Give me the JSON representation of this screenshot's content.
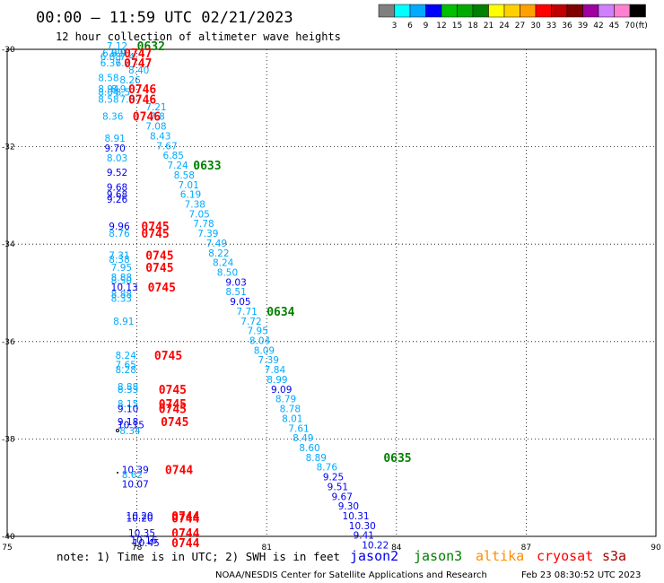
{
  "title": "00:00 – 11:59 UTC 02/21/2023",
  "subtitle": "12 hour collection of altimeter wave heights",
  "colorbar": {
    "labels": [
      "3",
      "6",
      "9",
      "12",
      "15",
      "18",
      "21",
      "24",
      "27",
      "30",
      "33",
      "36",
      "39",
      "42",
      "45",
      "70"
    ],
    "unit": "(ft)",
    "colors": [
      "#808080",
      "#00ffff",
      "#00aaff",
      "#0000ff",
      "#00c000",
      "#00aa00",
      "#008000",
      "#ffff00",
      "#ffd000",
      "#ffa000",
      "#ff0000",
      "#c00000",
      "#800000",
      "#a000a0",
      "#d080ff",
      "#ff80d0",
      "#000000"
    ]
  },
  "note": "note: 1) Time is in UTC; 2) SWH is in feet",
  "legend": [
    {
      "name": "jason2",
      "color": "#0000ee"
    },
    {
      "name": "jason3",
      "color": "#008000"
    },
    {
      "name": "altika",
      "color": "#ff8c00"
    },
    {
      "name": "cryosat",
      "color": "#ff0000"
    },
    {
      "name": "s3a",
      "color": "#aa0000"
    }
  ],
  "credit": "NOAA/NESDIS Center for Satellite Applications and Research",
  "timestamp": "Feb 23 08:30:52 UTC 2023",
  "chart_data": {
    "type": "scatter",
    "xlim": [
      75,
      90
    ],
    "ylim": [
      -40,
      -30
    ],
    "x_ticks": [
      "75",
      "78",
      "81",
      "84",
      "87",
      "90"
    ],
    "y_ticks": [
      "-30",
      "-32",
      "-34",
      "-36",
      "-38",
      "-40"
    ],
    "grid": true,
    "points": [
      {
        "x": 77.3,
        "y": -30.0,
        "v": "7.12",
        "c": "#00aaff"
      },
      {
        "x": 77.2,
        "y": -30.15,
        "v": "6.99",
        "c": "#00aaff"
      },
      {
        "x": 77.4,
        "y": -30.15,
        "v": "6.9",
        "c": "#00aaff"
      },
      {
        "x": 77.15,
        "y": -30.22,
        "v": "6.88",
        "c": "#00aaff"
      },
      {
        "x": 77.6,
        "y": -30.22,
        "v": "7.4",
        "c": "#00aaff"
      },
      {
        "x": 77.15,
        "y": -30.35,
        "v": "6.37",
        "c": "#00aaff"
      },
      {
        "x": 77.5,
        "y": -30.35,
        "v": "6.7",
        "c": "#00aaff"
      },
      {
        "x": 77.8,
        "y": -30.5,
        "v": "8.40",
        "c": "#00aaff"
      },
      {
        "x": 77.1,
        "y": -30.65,
        "v": "8.58",
        "c": "#00aaff"
      },
      {
        "x": 77.6,
        "y": -30.7,
        "v": "8.26",
        "c": "#00aaff"
      },
      {
        "x": 77.1,
        "y": -30.88,
        "v": "8.94",
        "c": "#00aaff"
      },
      {
        "x": 77.4,
        "y": -30.88,
        "v": "8.9",
        "c": "#00aaff"
      },
      {
        "x": 77.1,
        "y": -30.95,
        "v": "8.04",
        "c": "#00aaff"
      },
      {
        "x": 77.5,
        "y": -30.95,
        "v": "8.5",
        "c": "#00aaff"
      },
      {
        "x": 77.1,
        "y": -31.1,
        "v": "8.58",
        "c": "#00aaff"
      },
      {
        "x": 77.6,
        "y": -31.1,
        "v": "7.8",
        "c": "#00aaff"
      },
      {
        "x": 78.2,
        "y": -31.25,
        "v": "7.21",
        "c": "#00aaff"
      },
      {
        "x": 77.2,
        "y": -31.45,
        "v": "8.36",
        "c": "#00aaff"
      },
      {
        "x": 78.3,
        "y": -31.45,
        "v": "7.8",
        "c": "#00aaff"
      },
      {
        "x": 78.2,
        "y": -31.65,
        "v": "7.08",
        "c": "#00aaff"
      },
      {
        "x": 78.3,
        "y": -31.85,
        "v": "8.43",
        "c": "#00aaff"
      },
      {
        "x": 77.25,
        "y": -31.9,
        "v": "8.91",
        "c": "#00aaff"
      },
      {
        "x": 78.45,
        "y": -32.05,
        "v": "7.67",
        "c": "#00aaff"
      },
      {
        "x": 77.25,
        "y": -32.1,
        "v": "9.70",
        "c": "#0000ee"
      },
      {
        "x": 78.6,
        "y": -32.25,
        "v": "6.85",
        "c": "#00aaff"
      },
      {
        "x": 77.3,
        "y": -32.3,
        "v": "8.03",
        "c": "#00aaff"
      },
      {
        "x": 78.7,
        "y": -32.45,
        "v": "7.24",
        "c": "#00aaff"
      },
      {
        "x": 77.3,
        "y": -32.6,
        "v": "9.52",
        "c": "#0000ee"
      },
      {
        "x": 78.85,
        "y": -32.65,
        "v": "8.58",
        "c": "#00aaff"
      },
      {
        "x": 78.95,
        "y": -32.85,
        "v": "7.01",
        "c": "#00aaff"
      },
      {
        "x": 77.3,
        "y": -32.9,
        "v": "9.68",
        "c": "#0000ee"
      },
      {
        "x": 77.3,
        "y": -33.05,
        "v": "9.68",
        "c": "#0000ee"
      },
      {
        "x": 79.0,
        "y": -33.05,
        "v": "6.19",
        "c": "#00aaff"
      },
      {
        "x": 77.3,
        "y": -33.15,
        "v": "9.26",
        "c": "#0000ee"
      },
      {
        "x": 79.1,
        "y": -33.25,
        "v": "7.38",
        "c": "#00aaff"
      },
      {
        "x": 79.2,
        "y": -33.45,
        "v": "7.05",
        "c": "#00aaff"
      },
      {
        "x": 79.3,
        "y": -33.65,
        "v": "7.78",
        "c": "#00aaff"
      },
      {
        "x": 77.35,
        "y": -33.7,
        "v": "9.96",
        "c": "#0000ee"
      },
      {
        "x": 77.35,
        "y": -33.85,
        "v": "8.76",
        "c": "#00aaff"
      },
      {
        "x": 79.4,
        "y": -33.85,
        "v": "7.39",
        "c": "#00aaff"
      },
      {
        "x": 79.6,
        "y": -34.05,
        "v": "7.49",
        "c": "#00aaff"
      },
      {
        "x": 79.65,
        "y": -34.25,
        "v": "8.22",
        "c": "#00aaff"
      },
      {
        "x": 77.35,
        "y": -34.3,
        "v": "7.31",
        "c": "#00aaff"
      },
      {
        "x": 77.35,
        "y": -34.38,
        "v": "8.38",
        "c": "#00aaff"
      },
      {
        "x": 79.75,
        "y": -34.45,
        "v": "8.24",
        "c": "#00aaff"
      },
      {
        "x": 77.4,
        "y": -34.55,
        "v": "7.95",
        "c": "#00aaff"
      },
      {
        "x": 79.85,
        "y": -34.65,
        "v": "8.50",
        "c": "#00aaff"
      },
      {
        "x": 77.4,
        "y": -34.75,
        "v": "8.88",
        "c": "#00aaff"
      },
      {
        "x": 77.4,
        "y": -34.82,
        "v": "8.50",
        "c": "#00aaff"
      },
      {
        "x": 80.05,
        "y": -34.85,
        "v": "9.03",
        "c": "#0000ee"
      },
      {
        "x": 77.4,
        "y": -34.95,
        "v": "10.13",
        "c": "#0000ee"
      },
      {
        "x": 80.05,
        "y": -35.05,
        "v": "8.51",
        "c": "#00aaff"
      },
      {
        "x": 77.4,
        "y": -35.1,
        "v": "8.88",
        "c": "#00aaff"
      },
      {
        "x": 77.4,
        "y": -35.18,
        "v": "8.33",
        "c": "#00aaff"
      },
      {
        "x": 80.15,
        "y": -35.25,
        "v": "9.05",
        "c": "#0000ee"
      },
      {
        "x": 80.3,
        "y": -35.45,
        "v": "7.71",
        "c": "#00aaff"
      },
      {
        "x": 77.45,
        "y": -35.65,
        "v": "8.91",
        "c": "#00aaff"
      },
      {
        "x": 80.4,
        "y": -35.65,
        "v": "7.72",
        "c": "#00aaff"
      },
      {
        "x": 80.55,
        "y": -35.85,
        "v": "7.95",
        "c": "#00aaff"
      },
      {
        "x": 80.6,
        "y": -36.05,
        "v": "8.04",
        "c": "#00aaff"
      },
      {
        "x": 80.7,
        "y": -36.25,
        "v": "8.09",
        "c": "#00aaff"
      },
      {
        "x": 77.5,
        "y": -36.35,
        "v": "8.24",
        "c": "#00aaff"
      },
      {
        "x": 80.8,
        "y": -36.45,
        "v": "7.39",
        "c": "#00aaff"
      },
      {
        "x": 77.5,
        "y": -36.55,
        "v": "7.65",
        "c": "#00aaff"
      },
      {
        "x": 77.5,
        "y": -36.65,
        "v": "8.28",
        "c": "#00aaff"
      },
      {
        "x": 80.95,
        "y": -36.65,
        "v": "7.84",
        "c": "#00aaff"
      },
      {
        "x": 81.0,
        "y": -36.85,
        "v": "8.99",
        "c": "#00aaff"
      },
      {
        "x": 77.55,
        "y": -37.0,
        "v": "8.88",
        "c": "#00aaff"
      },
      {
        "x": 77.55,
        "y": -37.05,
        "v": "8.33",
        "c": "#00aaff"
      },
      {
        "x": 81.1,
        "y": -37.05,
        "v": "9.09",
        "c": "#0000ee"
      },
      {
        "x": 81.2,
        "y": -37.25,
        "v": "8.79",
        "c": "#00aaff"
      },
      {
        "x": 77.55,
        "y": -37.35,
        "v": "8.15",
        "c": "#00aaff"
      },
      {
        "x": 77.55,
        "y": -37.45,
        "v": "9.10",
        "c": "#0000ee"
      },
      {
        "x": 81.3,
        "y": -37.45,
        "v": "8.78",
        "c": "#00aaff"
      },
      {
        "x": 81.35,
        "y": -37.65,
        "v": "8.01",
        "c": "#00aaff"
      },
      {
        "x": 77.55,
        "y": -37.72,
        "v": "9.18",
        "c": "#0000ee"
      },
      {
        "x": 77.55,
        "y": -37.78,
        "v": "10.15",
        "c": "#0000ee"
      },
      {
        "x": 81.5,
        "y": -37.85,
        "v": "7.61",
        "c": "#00aaff"
      },
      {
        "x": 77.6,
        "y": -37.9,
        "v": "8.34",
        "c": "#00aaff"
      },
      {
        "x": 81.6,
        "y": -38.05,
        "v": "8.49",
        "c": "#00aaff"
      },
      {
        "x": 81.75,
        "y": -38.25,
        "v": "8.60",
        "c": "#00aaff"
      },
      {
        "x": 81.9,
        "y": -38.45,
        "v": "8.89",
        "c": "#00aaff"
      },
      {
        "x": 82.15,
        "y": -38.65,
        "v": "8.76",
        "c": "#00aaff"
      },
      {
        "x": 77.65,
        "y": -38.7,
        "v": "10.39",
        "c": "#0000ee"
      },
      {
        "x": 77.65,
        "y": -38.8,
        "v": "8.62",
        "c": "#00aaff"
      },
      {
        "x": 82.3,
        "y": -38.85,
        "v": "9.25",
        "c": "#0000ee"
      },
      {
        "x": 77.65,
        "y": -39.0,
        "v": "10.07",
        "c": "#0000ee"
      },
      {
        "x": 82.4,
        "y": -39.05,
        "v": "9.51",
        "c": "#0000ee"
      },
      {
        "x": 82.5,
        "y": -39.25,
        "v": "9.67",
        "c": "#0000ee"
      },
      {
        "x": 82.65,
        "y": -39.45,
        "v": "9.30",
        "c": "#0000ee"
      },
      {
        "x": 77.75,
        "y": -39.65,
        "v": "10.20",
        "c": "#0000ee"
      },
      {
        "x": 77.75,
        "y": -39.7,
        "v": "10.20",
        "c": "#0000ee"
      },
      {
        "x": 82.75,
        "y": -39.65,
        "v": "10.31",
        "c": "#0000ee"
      },
      {
        "x": 82.9,
        "y": -39.85,
        "v": "10.30",
        "c": "#0000ee"
      },
      {
        "x": 77.8,
        "y": -40.0,
        "v": "10.35",
        "c": "#0000ee"
      },
      {
        "x": 83.0,
        "y": -40.05,
        "v": "9.41",
        "c": "#0000ee"
      },
      {
        "x": 77.85,
        "y": -40.15,
        "v": "10.16",
        "c": "#0000ee"
      },
      {
        "x": 77.9,
        "y": -40.2,
        "v": "10.45",
        "c": "#0000ee"
      },
      {
        "x": 83.2,
        "y": -40.25,
        "v": "10.22",
        "c": "#0000ee"
      }
    ],
    "pass_labels": [
      {
        "x": 78.0,
        "y": -30.0,
        "t": "0632",
        "c": "#008000"
      },
      {
        "x": 77.7,
        "y": -30.15,
        "t": "0747",
        "c": "#ff0000"
      },
      {
        "x": 77.7,
        "y": -30.35,
        "t": "0747",
        "c": "#ff0000"
      },
      {
        "x": 77.8,
        "y": -30.88,
        "t": "0746",
        "c": "#ff0000"
      },
      {
        "x": 77.8,
        "y": -31.1,
        "t": "0746",
        "c": "#ff0000"
      },
      {
        "x": 77.9,
        "y": -31.45,
        "t": "0746",
        "c": "#ff0000"
      },
      {
        "x": 79.3,
        "y": -32.45,
        "t": "0633",
        "c": "#008000"
      },
      {
        "x": 78.1,
        "y": -33.7,
        "t": "0745",
        "c": "#ff0000"
      },
      {
        "x": 78.1,
        "y": -33.85,
        "t": "0745",
        "c": "#ff0000"
      },
      {
        "x": 78.2,
        "y": -34.3,
        "t": "0745",
        "c": "#ff0000"
      },
      {
        "x": 78.2,
        "y": -34.55,
        "t": "0745",
        "c": "#ff0000"
      },
      {
        "x": 78.25,
        "y": -34.95,
        "t": "0745",
        "c": "#ff0000"
      },
      {
        "x": 81.0,
        "y": -35.45,
        "t": "0634",
        "c": "#008000"
      },
      {
        "x": 78.4,
        "y": -36.35,
        "t": "0745",
        "c": "#ff0000"
      },
      {
        "x": 78.5,
        "y": -37.05,
        "t": "0745",
        "c": "#ff0000"
      },
      {
        "x": 78.5,
        "y": -37.35,
        "t": "0745",
        "c": "#ff0000"
      },
      {
        "x": 78.5,
        "y": -37.45,
        "t": "0745",
        "c": "#ff0000"
      },
      {
        "x": 78.55,
        "y": -37.72,
        "t": "0745",
        "c": "#ff0000"
      },
      {
        "x": 83.7,
        "y": -38.45,
        "t": "0635",
        "c": "#008000"
      },
      {
        "x": 78.65,
        "y": -38.7,
        "t": "0744",
        "c": "#ff0000"
      },
      {
        "x": 78.8,
        "y": -39.65,
        "t": "0744",
        "c": "#ff0000"
      },
      {
        "x": 78.8,
        "y": -39.7,
        "t": "0744",
        "c": "#ff0000"
      },
      {
        "x": 78.8,
        "y": -40.0,
        "t": "0744",
        "c": "#ff0000"
      },
      {
        "x": 78.8,
        "y": -40.2,
        "t": "0744",
        "c": "#ff0000"
      }
    ]
  }
}
